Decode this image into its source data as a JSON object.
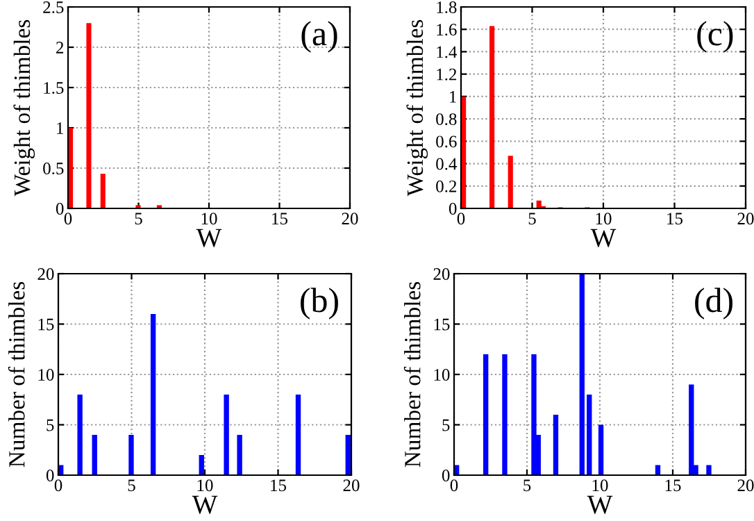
{
  "chart_data": [
    {
      "type": "bar",
      "xlabel": "W",
      "ylabel": "Weight of thimbles",
      "annotations": [
        "(a)"
      ],
      "series": [
        {
          "color": "#ff0000",
          "x": [
            0,
            1.3,
            2.3,
            4.8,
            6.3
          ],
          "values": [
            1.0,
            2.3,
            0.43,
            0.04,
            0.04
          ]
        }
      ],
      "xlim": [
        0,
        20
      ],
      "xticks": [
        0,
        5,
        10,
        15,
        20
      ],
      "ylim": [
        0,
        2.5
      ],
      "yticks": [
        0,
        0.5,
        1,
        1.5,
        2,
        2.5
      ],
      "grid": true
    },
    {
      "type": "bar",
      "xlabel": "W",
      "ylabel": "Weight of thimbles",
      "annotations": [
        "(c)"
      ],
      "series": [
        {
          "color": "#ff0000",
          "x": [
            0,
            2.0,
            3.3,
            5.3,
            5.6,
            6.8,
            8.7
          ],
          "values": [
            1.0,
            1.63,
            0.47,
            0.07,
            0.02,
            0.01,
            0.01
          ]
        }
      ],
      "xlim": [
        0,
        20
      ],
      "xticks": [
        0,
        5,
        10,
        15,
        20
      ],
      "ylim": [
        0,
        1.8
      ],
      "yticks": [
        0,
        0.2,
        0.4,
        0.6,
        0.8,
        1,
        1.2,
        1.4,
        1.6,
        1.8
      ],
      "grid": true
    },
    {
      "type": "bar",
      "xlabel": "W",
      "ylabel": "Number of thimbles",
      "annotations": [
        "(b)"
      ],
      "series": [
        {
          "color": "#0000ff",
          "x": [
            0,
            1.3,
            2.3,
            4.8,
            6.3,
            9.6,
            11.3,
            12.2,
            16.2,
            19.6
          ],
          "values": [
            1,
            8,
            4,
            4,
            16,
            2,
            8,
            4,
            8,
            4
          ]
        }
      ],
      "xlim": [
        0,
        20
      ],
      "xticks": [
        0,
        5,
        10,
        15,
        20
      ],
      "ylim": [
        0,
        20
      ],
      "yticks": [
        0,
        5,
        10,
        15,
        20
      ],
      "grid": true
    },
    {
      "type": "bar",
      "xlabel": "W",
      "ylabel": "Number of thimbles",
      "annotations": [
        "(d)"
      ],
      "series": [
        {
          "color": "#0000ff",
          "x": [
            0,
            2.0,
            3.3,
            5.3,
            5.6,
            6.8,
            8.6,
            9.1,
            9.9,
            13.8,
            16.1,
            16.4,
            17.3
          ],
          "values": [
            1,
            12,
            12,
            12,
            4,
            6,
            20,
            8,
            5,
            1,
            9,
            1,
            1
          ]
        }
      ],
      "xlim": [
        0,
        20
      ],
      "xticks": [
        0,
        5,
        10,
        15,
        20
      ],
      "ylim": [
        0,
        20
      ],
      "yticks": [
        0,
        5,
        10,
        15,
        20
      ],
      "grid": true
    }
  ]
}
